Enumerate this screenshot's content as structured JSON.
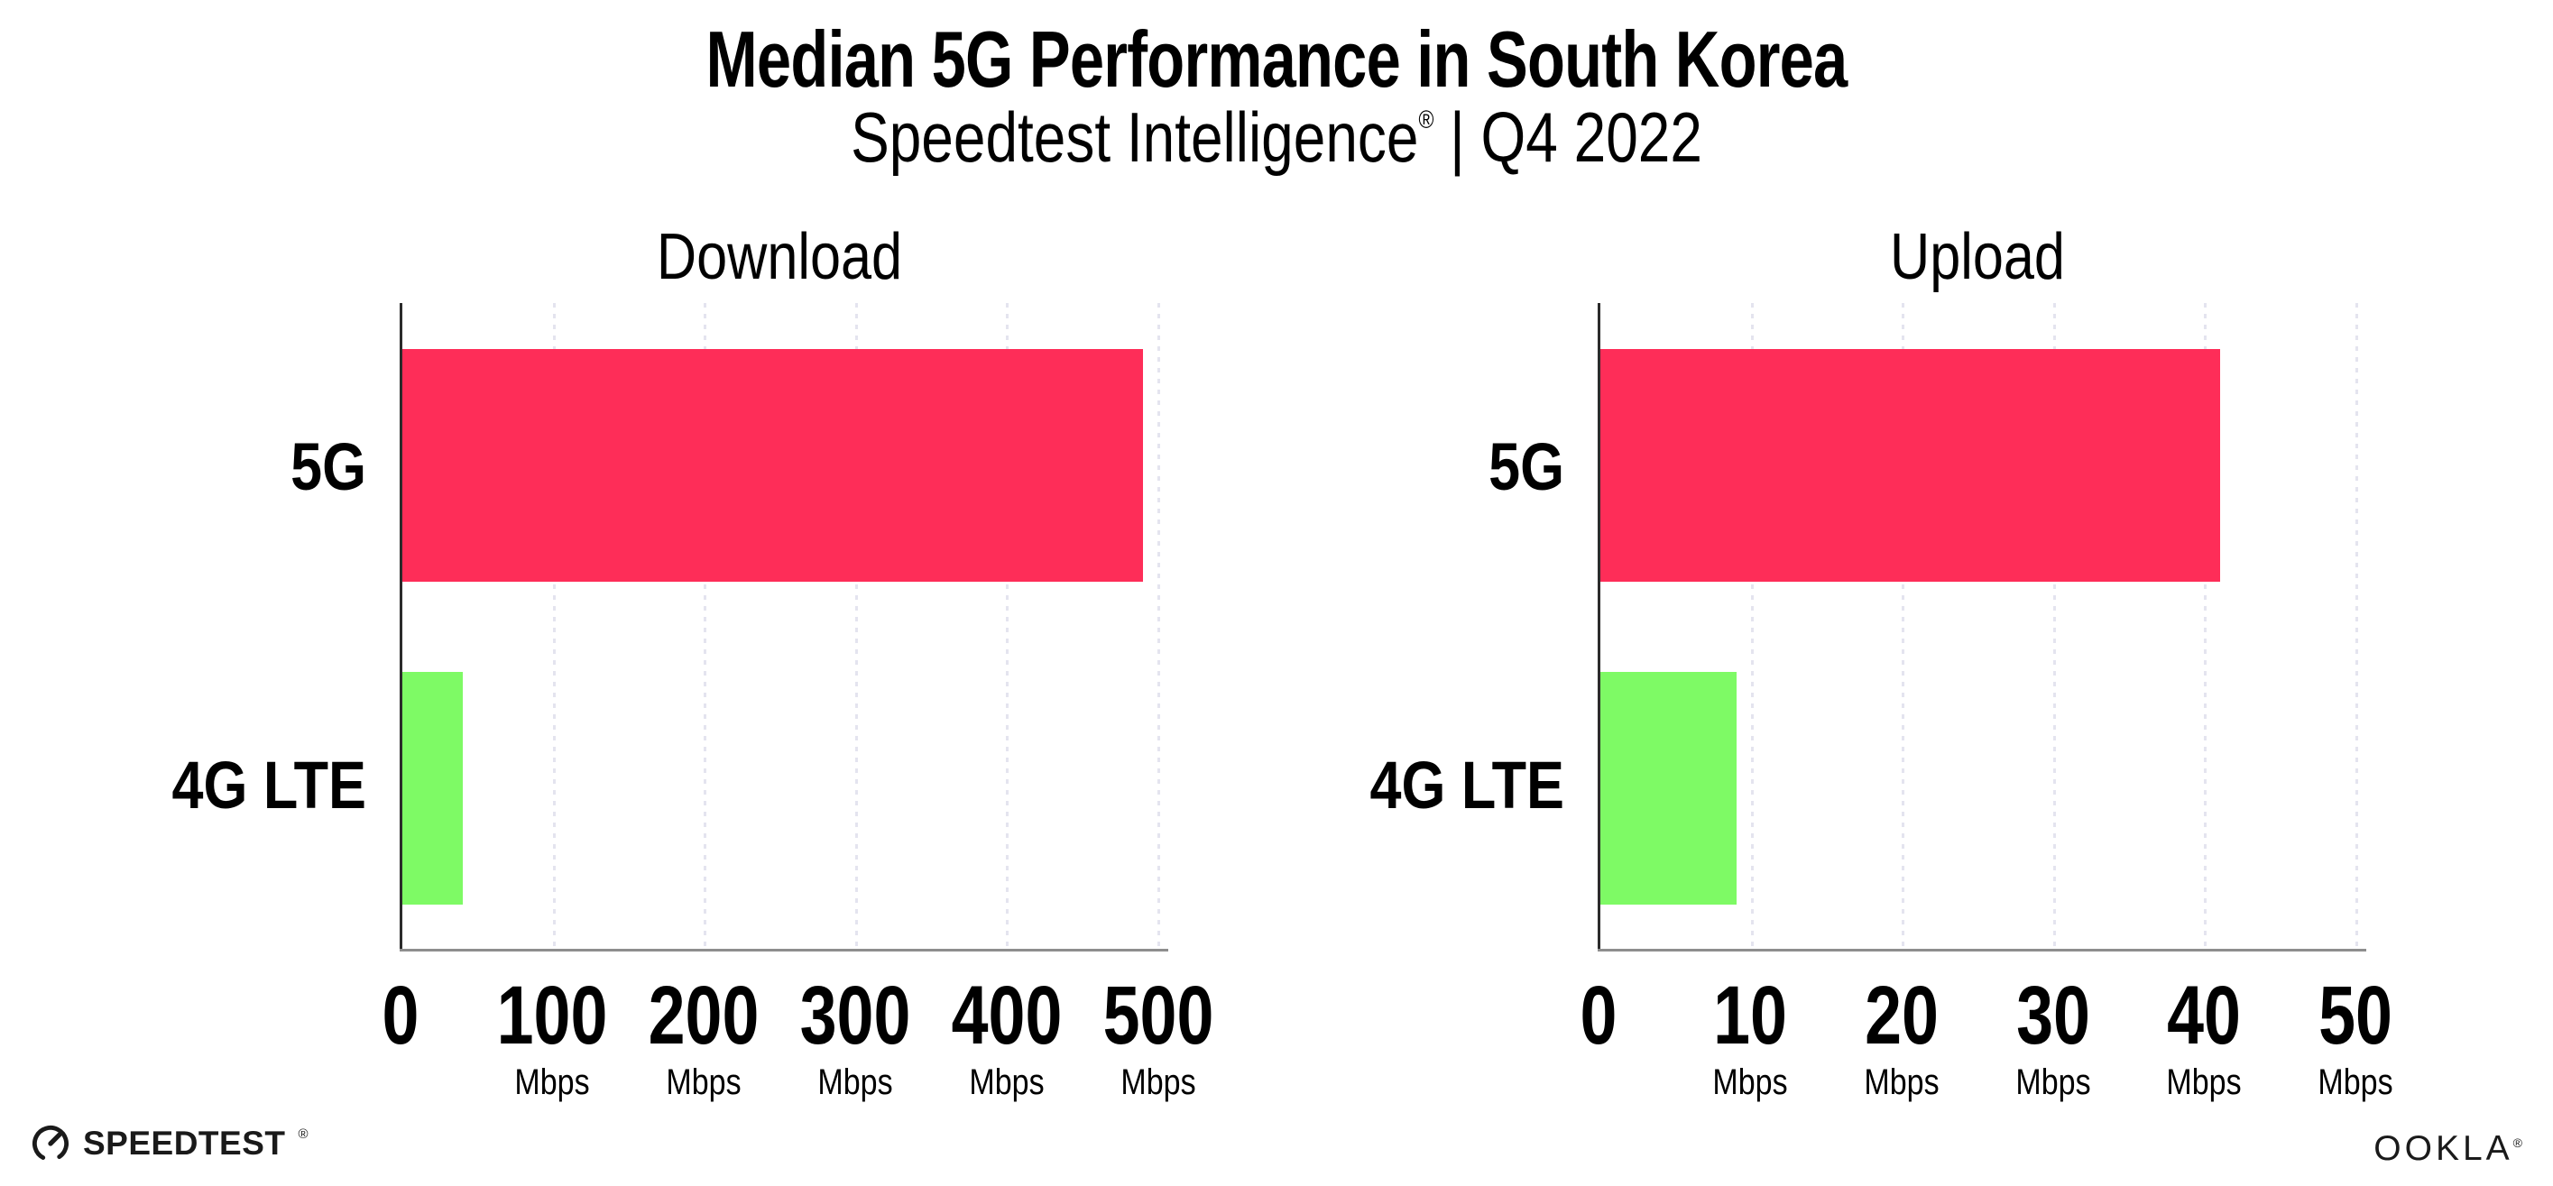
{
  "header": {
    "title": "Median 5G Performance in South Korea",
    "subtitle_brand": "Speedtest Intelligence",
    "subtitle_registered": "®",
    "subtitle_rest": "| Q4 2022"
  },
  "colors": {
    "bar_5g": "#FE2D58",
    "bar_4g_lte": "#7EFA65",
    "gridline": "#E4E4EF",
    "axis_y": "#2B2B2B",
    "axis_x": "#8E8E8E",
    "text": "#000000",
    "background": "#FFFFFF"
  },
  "chart_data": [
    {
      "type": "bar",
      "orientation": "horizontal",
      "title": "Download",
      "categories": [
        "5G",
        "4G LTE"
      ],
      "values": [
        490,
        40
      ],
      "unit": "Mbps",
      "xlim": [
        0,
        500
      ],
      "xticks": [
        0,
        100,
        200,
        300,
        400,
        500
      ],
      "grid": "dotted-vertical",
      "legend": "none",
      "ticks": [
        {
          "label": "0",
          "unit": ""
        },
        {
          "label": "100",
          "unit": "Mbps"
        },
        {
          "label": "200",
          "unit": "Mbps"
        },
        {
          "label": "300",
          "unit": "Mbps"
        },
        {
          "label": "400",
          "unit": "Mbps"
        },
        {
          "label": "500",
          "unit": "Mbps"
        }
      ]
    },
    {
      "type": "bar",
      "orientation": "horizontal",
      "title": "Upload",
      "categories": [
        "5G",
        "4G LTE"
      ],
      "values": [
        41,
        9
      ],
      "unit": "Mbps",
      "xlim": [
        0,
        50
      ],
      "xticks": [
        0,
        10,
        20,
        30,
        40,
        50
      ],
      "grid": "dotted-vertical",
      "legend": "none",
      "ticks": [
        {
          "label": "0",
          "unit": ""
        },
        {
          "label": "10",
          "unit": "Mbps"
        },
        {
          "label": "20",
          "unit": "Mbps"
        },
        {
          "label": "30",
          "unit": "Mbps"
        },
        {
          "label": "40",
          "unit": "Mbps"
        },
        {
          "label": "50",
          "unit": "Mbps"
        }
      ]
    }
  ],
  "footer": {
    "speedtest_logo": "SPEEDTEST",
    "speedtest_registered": "®",
    "ookla_logo": "OOKLA",
    "ookla_registered": "®"
  }
}
